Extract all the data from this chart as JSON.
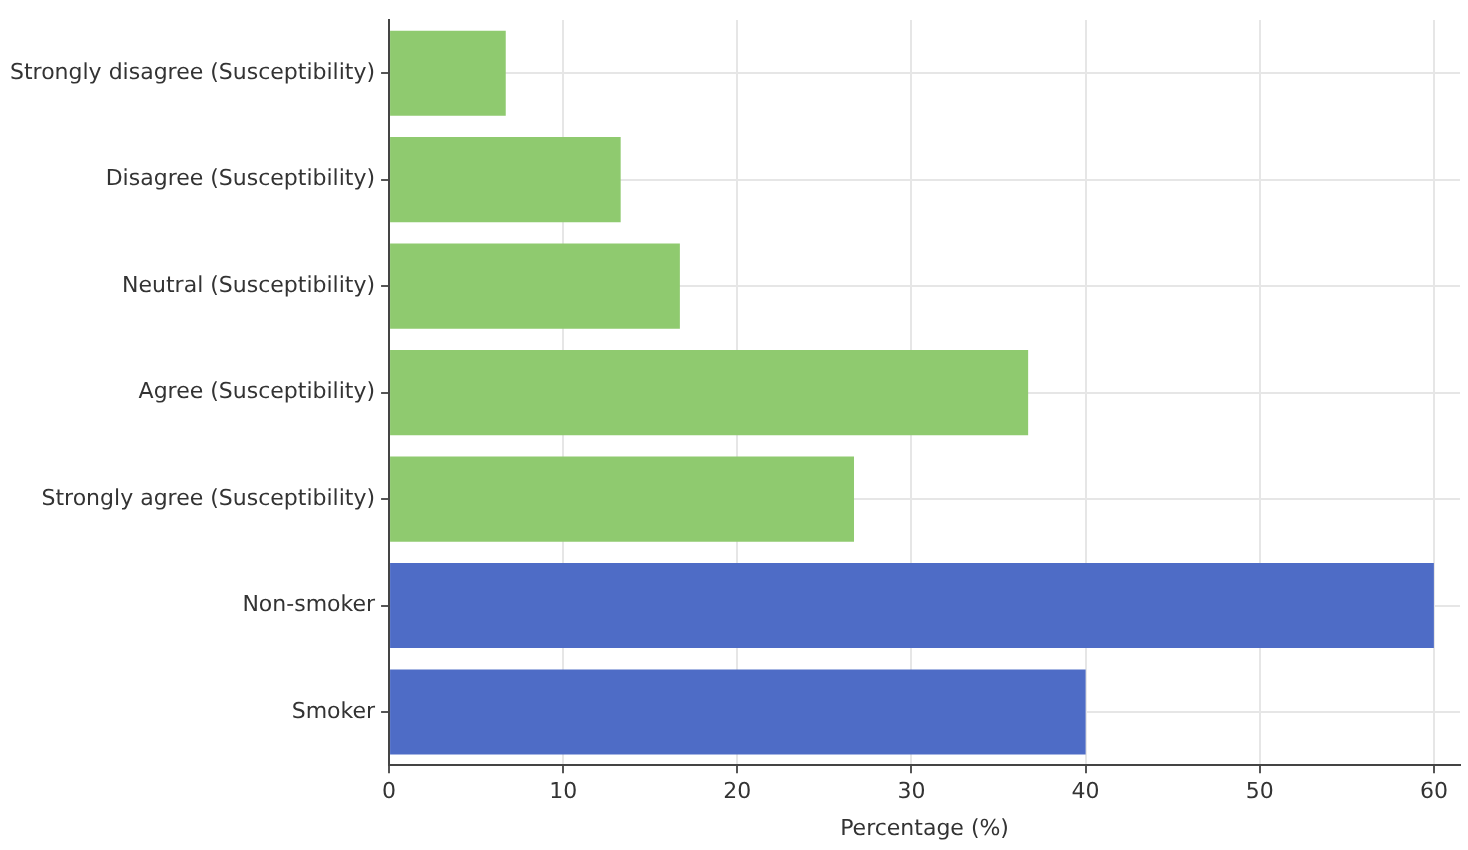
{
  "chart_data": {
    "type": "bar",
    "orientation": "horizontal",
    "xlabel": "Percentage (%)",
    "categories": [
      "Strongly disagree (Susceptibility)",
      "Disagree (Susceptibility)",
      "Neutral (Susceptibility)",
      "Agree (Susceptibility)",
      "Strongly agree (Susceptibility)",
      "Non-smoker",
      "Smoker"
    ],
    "values": [
      6.7,
      13.3,
      16.7,
      36.7,
      26.7,
      60,
      40
    ],
    "colors": [
      "#8fca6f",
      "#8fca6f",
      "#8fca6f",
      "#8fca6f",
      "#8fca6f",
      "#4e6cc6",
      "#4e6cc6"
    ],
    "xlim": [
      0,
      61.5
    ],
    "xticks": [
      0,
      10,
      20,
      30,
      40,
      50,
      60
    ],
    "grid": true,
    "legend": false
  }
}
